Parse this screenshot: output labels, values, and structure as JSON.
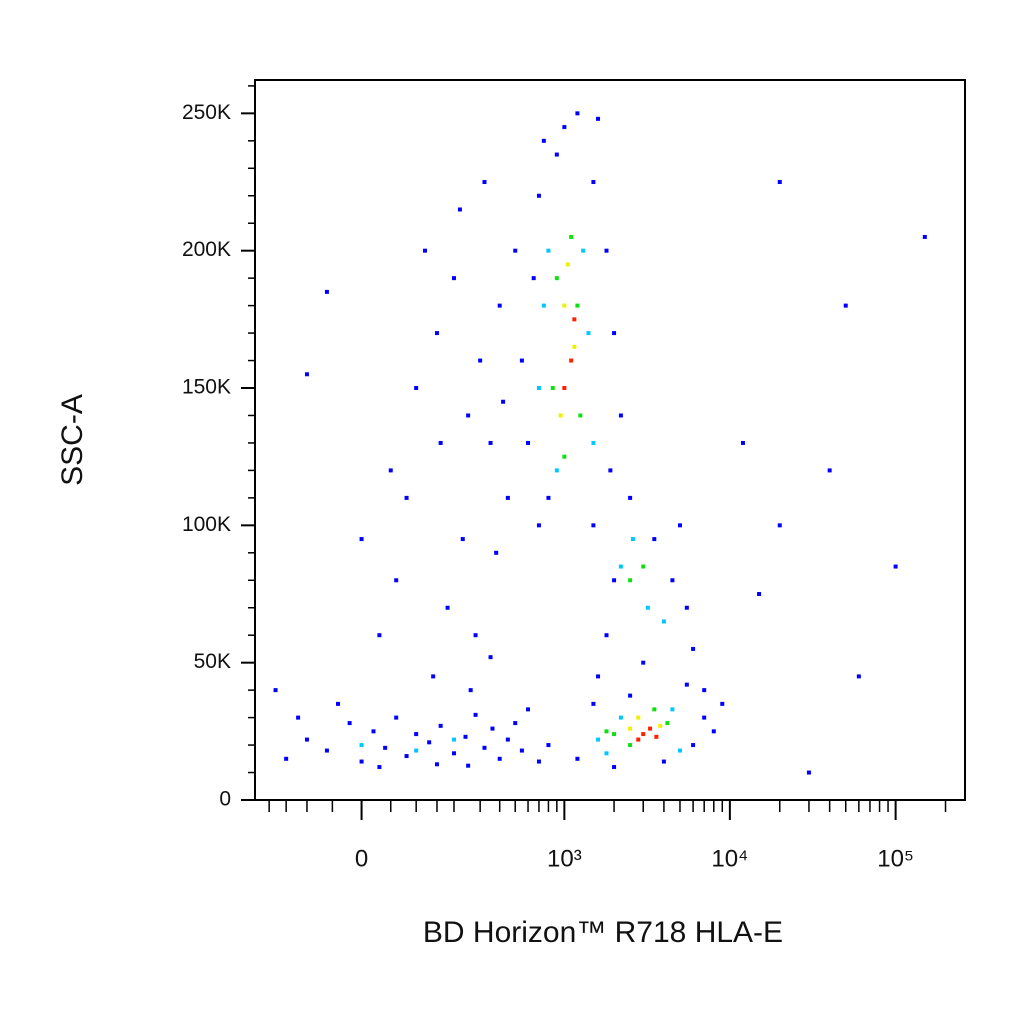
{
  "chart_data": {
    "type": "scatter",
    "x_label": "BD Horizon™ R718 HLA-E",
    "y_label": "SSC-A",
    "xscale": "biexponential",
    "xlim": [
      -250,
      262144
    ],
    "xticks": [
      0,
      {
        "value": 1000,
        "label": "10³"
      },
      {
        "value": 10000,
        "label": "10⁴"
      },
      {
        "value": 100000,
        "label": "10⁵"
      }
    ],
    "xminorticks": [
      -200,
      -150,
      -100,
      -50,
      50,
      100,
      150,
      200,
      300,
      400,
      500,
      600,
      700,
      800,
      900,
      2000,
      3000,
      4000,
      5000,
      6000,
      7000,
      8000,
      9000,
      20000,
      30000,
      40000,
      50000,
      60000,
      70000,
      80000,
      90000,
      200000
    ],
    "ylim": [
      0,
      262144
    ],
    "yticks": [
      0,
      {
        "value": 50000,
        "label": "50K"
      },
      {
        "value": 100000,
        "label": "100K"
      },
      {
        "value": 150000,
        "label": "150K"
      },
      {
        "value": 200000,
        "label": "200K"
      },
      {
        "value": 250000,
        "label": "250K"
      }
    ],
    "yminorticks": [
      10000,
      20000,
      30000,
      40000,
      60000,
      70000,
      80000,
      90000,
      110000,
      120000,
      130000,
      140000,
      160000,
      170000,
      180000,
      190000,
      210000,
      220000,
      230000,
      240000,
      260000
    ],
    "series": [
      {
        "color": "#0000ff",
        "x": [
          -150,
          -100,
          -60,
          -20,
          0,
          20,
          40,
          60,
          80,
          100,
          130,
          160,
          200,
          240,
          280,
          320,
          360,
          400,
          450,
          500,
          550,
          600,
          -120,
          -40,
          30,
          150,
          250,
          700,
          800,
          -180,
          0,
          50,
          100,
          150,
          200,
          250,
          300,
          350,
          400,
          450,
          120,
          220,
          60,
          180,
          280,
          380,
          -100,
          -60,
          320,
          80,
          160,
          230,
          420,
          500,
          30,
          140,
          260,
          350,
          600,
          650,
          700,
          750,
          800,
          900,
          1000,
          1200,
          1500,
          1800,
          2000,
          2200,
          1900,
          700,
          550,
          1600,
          1500,
          1800,
          2500,
          3500,
          4500,
          5500,
          6000,
          1600,
          7000,
          2000,
          3000,
          5000,
          1200,
          1500,
          2000,
          6000,
          7000,
          8000,
          9000,
          4000,
          2500,
          5500,
          15000,
          20000,
          40000,
          50000,
          100000,
          150000,
          30000,
          60000,
          12000,
          20000
        ],
        "y": [
          15000,
          22000,
          18000,
          28000,
          14000,
          25000,
          19000,
          30000,
          16000,
          24000,
          21000,
          27000,
          17000,
          23000,
          31000,
          19000,
          26000,
          15000,
          22000,
          28000,
          18000,
          33000,
          30000,
          35000,
          12000,
          13000,
          12500,
          14000,
          20000,
          40000,
          95000,
          120000,
          150000,
          170000,
          190000,
          140000,
          160000,
          130000,
          180000,
          110000,
          200000,
          215000,
          80000,
          70000,
          60000,
          90000,
          155000,
          185000,
          225000,
          110000,
          130000,
          95000,
          145000,
          200000,
          60000,
          45000,
          40000,
          52000,
          130000,
          190000,
          220000,
          240000,
          110000,
          235000,
          245000,
          250000,
          225000,
          200000,
          170000,
          140000,
          120000,
          100000,
          160000,
          248000,
          100000,
          60000,
          110000,
          95000,
          80000,
          70000,
          55000,
          45000,
          40000,
          80000,
          50000,
          100000,
          15000,
          35000,
          12000,
          20000,
          30000,
          25000,
          35000,
          14000,
          38000,
          42000,
          75000,
          100000,
          120000,
          180000,
          85000,
          205000,
          10000,
          45000,
          130000,
          225000
        ]
      },
      {
        "color": "#00c8ff",
        "x": [
          700,
          800,
          1300,
          1500,
          900,
          1400,
          750,
          2200,
          3200,
          2600,
          4000,
          1600,
          2200,
          5000,
          4500,
          1800,
          0,
          200,
          100
        ],
        "y": [
          150000,
          200000,
          200000,
          130000,
          120000,
          170000,
          180000,
          85000,
          70000,
          95000,
          65000,
          22000,
          30000,
          18000,
          33000,
          17000,
          20000,
          22000,
          18000
        ]
      },
      {
        "color": "#10e010",
        "x": [
          900,
          1100,
          850,
          1250,
          1000,
          1200,
          2500,
          3000,
          2000,
          2500,
          4200,
          3500,
          1800
        ],
        "y": [
          190000,
          205000,
          150000,
          140000,
          125000,
          180000,
          80000,
          85000,
          24000,
          20000,
          28000,
          33000,
          25000
        ]
      },
      {
        "color": "#f0f000",
        "x": [
          1000,
          1150,
          950,
          1050,
          2500,
          3800,
          2800
        ],
        "y": [
          180000,
          165000,
          140000,
          195000,
          26000,
          27000,
          30000
        ]
      },
      {
        "color": "#ff2000",
        "x": [
          1100,
          1000,
          1150,
          3000,
          3300,
          2800,
          3600
        ],
        "y": [
          160000,
          150000,
          175000,
          24000,
          26000,
          22000,
          23000
        ]
      }
    ]
  }
}
